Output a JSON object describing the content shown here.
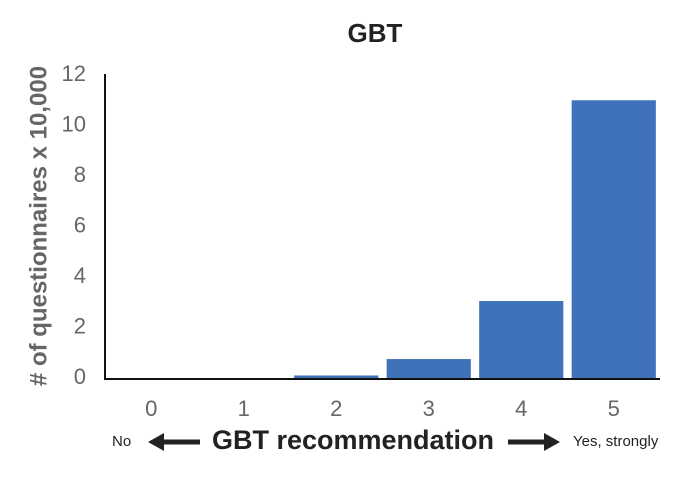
{
  "chart_data": {
    "type": "bar",
    "title": "GBT",
    "y_label": "# of questionnaires x 10,000",
    "x_label": "GBT recommendation",
    "annotations": [
      "No",
      "Yes, strongly"
    ],
    "categories": [
      "0",
      "1",
      "2",
      "3",
      "4",
      "5"
    ],
    "values": [
      0,
      0,
      0.1,
      0.75,
      3.05,
      11
    ],
    "color": "#3f72b9",
    "ylim": [
      0,
      12
    ],
    "yticks": [
      0,
      2,
      4,
      6,
      8,
      10,
      12
    ],
    "grid": false
  }
}
